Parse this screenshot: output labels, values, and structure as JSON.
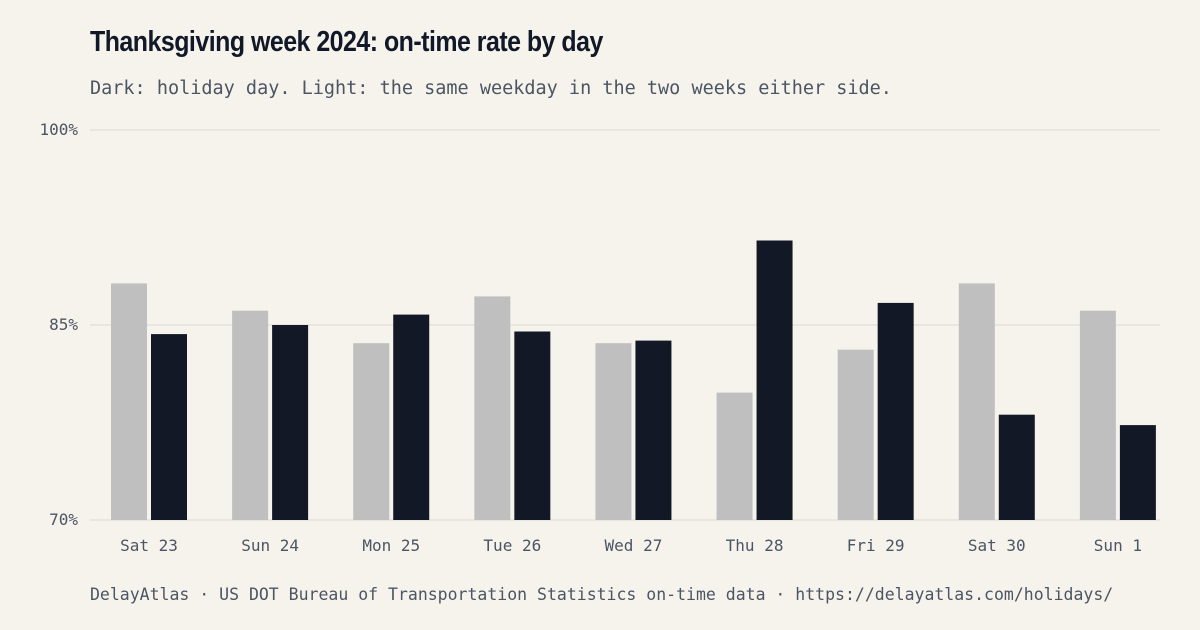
{
  "title": "Thanksgiving week 2024: on-time rate by day",
  "subtitle": "Dark: holiday day. Light: the same weekday in the two weeks either side.",
  "footer": "DelayAtlas · US DOT Bureau of Transportation Statistics on-time data · https://delayatlas.com/holidays/",
  "colors": {
    "background": "#f6f3ec",
    "holiday": "#121826",
    "comparison": "#bfbfbf",
    "grid": "#e4e1da",
    "text": "#4b5563"
  },
  "chart_data": {
    "type": "bar",
    "ylim": [
      70,
      100
    ],
    "yticks": [
      {
        "value": 100,
        "label": "100%"
      },
      {
        "value": 85,
        "label": "85%"
      },
      {
        "value": 70,
        "label": "70%"
      }
    ],
    "grid": true,
    "categories": [
      "Sat 23",
      "Sun 24",
      "Mon 25",
      "Tue 26",
      "Wed 27",
      "Thu 28",
      "Fri 29",
      "Sat 30",
      "Sun 1"
    ],
    "series": [
      {
        "role": "comparison",
        "color": "#bfbfbf",
        "values": [
          88.2,
          86.1,
          83.6,
          87.2,
          83.6,
          79.8,
          83.1,
          88.2,
          86.1
        ]
      },
      {
        "role": "holiday",
        "color": "#121826",
        "values": [
          84.3,
          85.0,
          85.8,
          84.5,
          83.8,
          91.5,
          86.7,
          78.1,
          77.3
        ]
      }
    ]
  }
}
